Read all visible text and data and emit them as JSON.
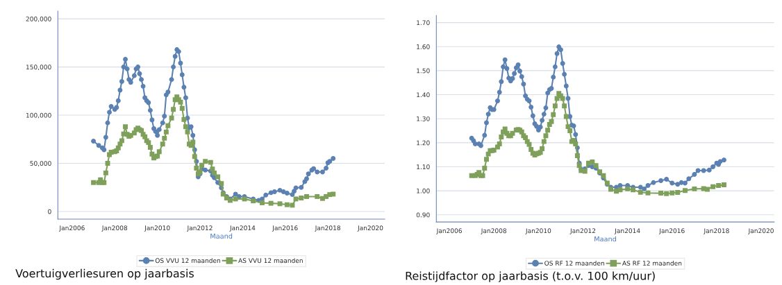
{
  "chart_data": [
    {
      "type": "line",
      "title": "Voertuigverliesuren op jaarbasis",
      "xlabel": "Maand",
      "xlim": [
        "2005-05",
        "2020-09"
      ],
      "xticks": [
        {
          "value": "2006-01",
          "label": "Jan2006"
        },
        {
          "value": "2008-01",
          "label": "Jan2008"
        },
        {
          "value": "2010-01",
          "label": "Jan2010"
        },
        {
          "value": "2012-01",
          "label": "Jan2012"
        },
        {
          "value": "2014-01",
          "label": "Jan2014"
        },
        {
          "value": "2016-01",
          "label": "Jan2016"
        },
        {
          "value": "2018-01",
          "label": "Jan2018"
        },
        {
          "value": "2020-01",
          "label": "Jan2020"
        }
      ],
      "ylim": [
        -8000,
        208000
      ],
      "yticks": [
        0,
        {
          "value": 50000,
          "label": "50,000"
        },
        {
          "value": 100000,
          "label": "100,000"
        },
        {
          "value": 150000,
          "label": "150,000"
        },
        {
          "value": 200000,
          "label": "200,000"
        }
      ],
      "grid": "y",
      "legend": "bottom",
      "series": [
        {
          "name": "OS VVU 12 maanden",
          "color": "#5b80b2",
          "marker": "circle",
          "x": [
            "2007-01",
            "2007-04",
            "2007-06",
            "2007-07",
            "2007-08",
            "2007-09",
            "2007-10",
            "2007-11",
            "2008-01",
            "2008-02",
            "2008-03",
            "2008-04",
            "2008-05",
            "2008-06",
            "2008-07",
            "2008-08",
            "2008-09",
            "2008-10",
            "2008-12",
            "2009-01",
            "2009-02",
            "2009-03",
            "2009-04",
            "2009-05",
            "2009-06",
            "2009-07",
            "2009-08",
            "2009-09",
            "2009-10",
            "2009-11",
            "2009-12",
            "2010-01",
            "2010-02",
            "2010-04",
            "2010-05",
            "2010-06",
            "2010-07",
            "2010-09",
            "2010-10",
            "2010-11",
            "2010-12",
            "2011-01",
            "2011-02",
            "2011-03",
            "2011-04",
            "2011-05",
            "2011-06",
            "2011-07",
            "2011-08",
            "2011-09",
            "2011-10",
            "2011-11",
            "2011-12",
            "2012-01",
            "2012-02",
            "2012-04",
            "2012-07",
            "2012-08",
            "2012-09",
            "2012-11",
            "2013-01",
            "2013-02",
            "2013-04",
            "2013-06",
            "2013-09",
            "2013-11",
            "2014-02",
            "2014-07",
            "2014-10",
            "2014-12",
            "2015-02",
            "2015-05",
            "2015-07",
            "2015-10",
            "2015-12",
            "2016-02",
            "2016-05",
            "2016-06",
            "2016-07",
            "2016-10",
            "2016-12",
            "2017-01",
            "2017-02",
            "2017-04",
            "2017-05",
            "2017-07",
            "2017-10",
            "2017-12",
            "2018-01",
            "2018-02",
            "2018-04"
          ],
          "values": [
            73000,
            68500,
            66000,
            64000,
            77000,
            92000,
            103000,
            109000,
            106000,
            108000,
            115000,
            126000,
            135000,
            150000,
            158000,
            148000,
            137000,
            134000,
            141000,
            148000,
            150000,
            143000,
            137000,
            130000,
            118000,
            115000,
            113000,
            105000,
            95000,
            86000,
            83000,
            79000,
            85000,
            92000,
            99000,
            121000,
            124000,
            137000,
            150000,
            161000,
            168000,
            166000,
            154000,
            142000,
            129000,
            118000,
            97000,
            87000,
            88000,
            79000,
            64000,
            52000,
            36000,
            39000,
            44000,
            43000,
            42000,
            37500,
            35000,
            30000,
            24500,
            19500,
            15500,
            13000,
            18000,
            15500,
            15500,
            13000,
            11500,
            13000,
            17000,
            19500,
            20500,
            22000,
            20500,
            19000,
            17500,
            21000,
            24500,
            25000,
            31000,
            34000,
            39000,
            43000,
            44500,
            41000,
            41000,
            45000,
            50500,
            52000,
            55000
          ]
        },
        {
          "name": "AS VVU 12 maanden",
          "color": "#7fa05a",
          "marker": "square",
          "x": [
            "2007-01",
            "2007-04",
            "2007-05",
            "2007-06",
            "2007-07",
            "2007-08",
            "2007-09",
            "2007-10",
            "2007-11",
            "2008-01",
            "2008-02",
            "2008-03",
            "2008-04",
            "2008-05",
            "2008-06",
            "2008-07",
            "2008-08",
            "2008-09",
            "2008-10",
            "2008-12",
            "2009-01",
            "2009-02",
            "2009-03",
            "2009-04",
            "2009-05",
            "2009-06",
            "2009-07",
            "2009-08",
            "2009-09",
            "2009-10",
            "2009-11",
            "2009-12",
            "2010-01",
            "2010-02",
            "2010-04",
            "2010-05",
            "2010-06",
            "2010-07",
            "2010-09",
            "2010-10",
            "2010-11",
            "2010-12",
            "2011-01",
            "2011-02",
            "2011-03",
            "2011-04",
            "2011-05",
            "2011-06",
            "2011-07",
            "2011-08",
            "2011-09",
            "2011-10",
            "2011-11",
            "2011-12",
            "2012-01",
            "2012-02",
            "2012-04",
            "2012-07",
            "2012-08",
            "2012-09",
            "2012-11",
            "2013-01",
            "2013-02",
            "2013-04",
            "2013-06",
            "2013-09",
            "2014-02",
            "2014-07",
            "2014-12",
            "2015-05",
            "2015-10",
            "2016-02",
            "2016-05",
            "2016-07",
            "2016-10",
            "2017-01",
            "2017-07",
            "2017-10",
            "2017-12",
            "2018-02",
            "2018-04"
          ],
          "values": [
            30000,
            30000,
            33000,
            30000,
            30000,
            40000,
            50000,
            59000,
            61500,
            62000,
            63000,
            66000,
            70000,
            73500,
            80500,
            88000,
            80000,
            78000,
            79000,
            81500,
            85000,
            86500,
            85000,
            84000,
            80000,
            77500,
            73500,
            71500,
            66500,
            59500,
            55500,
            57000,
            57500,
            62000,
            70000,
            76000,
            82500,
            89000,
            97000,
            106000,
            116000,
            119000,
            116000,
            113500,
            107000,
            95500,
            88000,
            82500,
            70000,
            68500,
            72000,
            57000,
            45000,
            39000,
            41000,
            48000,
            52000,
            51000,
            44000,
            40000,
            36000,
            29000,
            18000,
            14000,
            11500,
            13000,
            13000,
            11000,
            9000,
            8500,
            8000,
            7000,
            6500,
            13000,
            14000,
            15500,
            15500,
            13500,
            15500,
            17500,
            18000
          ]
        }
      ]
    },
    {
      "type": "line",
      "title": "Reistijdfactor op jaarbasis (t.o.v. 100 km/uur)",
      "xlabel": "Maand",
      "xlim": [
        "2005-06",
        "2020-08"
      ],
      "xticks": [
        {
          "value": "2006-01",
          "label": "Jan2006"
        },
        {
          "value": "2008-01",
          "label": "Jan2008"
        },
        {
          "value": "2010-01",
          "label": "Jan2010"
        },
        {
          "value": "2012-01",
          "label": "Jan2012"
        },
        {
          "value": "2014-01",
          "label": "Jan2014"
        },
        {
          "value": "2016-01",
          "label": "Jan2016"
        },
        {
          "value": "2018-01",
          "label": "Jan2018"
        },
        {
          "value": "2020-01",
          "label": "Jan2020"
        }
      ],
      "ylim": [
        0.87,
        1.73
      ],
      "yticks": [
        {
          "value": 0.9,
          "label": "0.90"
        },
        {
          "value": 1.0,
          "label": "1.00"
        },
        {
          "value": 1.1,
          "label": "1.10"
        },
        {
          "value": 1.2,
          "label": "1.20"
        },
        {
          "value": 1.3,
          "label": "1.30"
        },
        {
          "value": 1.4,
          "label": "1.40"
        },
        {
          "value": 1.5,
          "label": "1.50"
        },
        {
          "value": 1.6,
          "label": "1.60"
        },
        {
          "value": 1.7,
          "label": "1.70"
        }
      ],
      "grid": "y",
      "legend": "bottom",
      "series": [
        {
          "name": "OS RF 12 maanden",
          "color": "#5b80b2",
          "marker": "circle",
          "x": [
            "2007-01",
            "2007-02",
            "2007-03",
            "2007-05",
            "2007-06",
            "2007-08",
            "2007-09",
            "2007-10",
            "2007-11",
            "2007-12",
            "2008-01",
            "2008-03",
            "2008-04",
            "2008-05",
            "2008-06",
            "2008-07",
            "2008-08",
            "2008-09",
            "2008-10",
            "2008-11",
            "2008-12",
            "2009-01",
            "2009-02",
            "2009-03",
            "2009-04",
            "2009-05",
            "2009-06",
            "2009-07",
            "2009-08",
            "2009-09",
            "2009-10",
            "2009-11",
            "2009-12",
            "2010-01",
            "2010-02",
            "2010-03",
            "2010-04",
            "2010-05",
            "2010-06",
            "2010-07",
            "2010-08",
            "2010-09",
            "2010-10",
            "2010-11",
            "2010-12",
            "2011-01",
            "2011-02",
            "2011-03",
            "2011-04",
            "2011-05",
            "2011-06",
            "2011-07",
            "2011-08",
            "2011-09",
            "2011-10",
            "2011-11",
            "2011-12",
            "2012-02",
            "2012-04",
            "2012-06",
            "2012-08",
            "2012-10",
            "2012-12",
            "2013-02",
            "2013-04",
            "2013-07",
            "2013-09",
            "2014-01",
            "2014-04",
            "2014-08",
            "2014-10",
            "2014-12",
            "2015-03",
            "2015-07",
            "2015-10",
            "2016-01",
            "2016-04",
            "2016-06",
            "2016-08",
            "2016-10",
            "2017-01",
            "2017-03",
            "2017-06",
            "2017-09",
            "2017-11",
            "2018-01",
            "2018-02",
            "2018-03",
            "2018-05"
          ],
          "values": [
            1.219,
            1.208,
            1.195,
            1.195,
            1.188,
            1.231,
            1.283,
            1.319,
            1.346,
            1.338,
            1.338,
            1.374,
            1.41,
            1.454,
            1.516,
            1.545,
            1.509,
            1.469,
            1.457,
            1.467,
            1.488,
            1.512,
            1.524,
            1.498,
            1.475,
            1.444,
            1.395,
            1.381,
            1.374,
            1.348,
            1.312,
            1.279,
            1.268,
            1.253,
            1.265,
            1.293,
            1.319,
            1.345,
            1.407,
            1.421,
            1.426,
            1.473,
            1.516,
            1.571,
            1.599,
            1.587,
            1.53,
            1.485,
            1.436,
            1.384,
            1.309,
            1.273,
            1.27,
            1.234,
            1.179,
            1.115,
            1.089,
            1.091,
            1.105,
            1.1,
            1.094,
            1.074,
            1.053,
            1.027,
            1.015,
            1.015,
            1.022,
            1.022,
            1.015,
            1.015,
            1.008,
            1.022,
            1.034,
            1.042,
            1.048,
            1.032,
            1.027,
            1.034,
            1.032,
            1.05,
            1.068,
            1.084,
            1.084,
            1.086,
            1.1,
            1.115,
            1.11,
            1.122,
            1.128
          ]
        },
        {
          "name": "AS RF 12 maanden",
          "color": "#7fa05a",
          "marker": "square",
          "x": [
            "2007-01",
            "2007-03",
            "2007-04",
            "2007-05",
            "2007-06",
            "2007-07",
            "2007-08",
            "2007-09",
            "2007-10",
            "2007-11",
            "2007-12",
            "2008-01",
            "2008-03",
            "2008-04",
            "2008-05",
            "2008-06",
            "2008-07",
            "2008-08",
            "2008-09",
            "2008-10",
            "2008-11",
            "2009-01",
            "2009-02",
            "2009-03",
            "2009-04",
            "2009-05",
            "2009-06",
            "2009-07",
            "2009-08",
            "2009-09",
            "2009-10",
            "2009-11",
            "2009-12",
            "2010-01",
            "2010-02",
            "2010-03",
            "2010-04",
            "2010-05",
            "2010-06",
            "2010-07",
            "2010-08",
            "2010-09",
            "2010-10",
            "2010-11",
            "2010-12",
            "2011-01",
            "2011-02",
            "2011-03",
            "2011-04",
            "2011-05",
            "2011-06",
            "2011-07",
            "2011-08",
            "2011-09",
            "2011-10",
            "2011-11",
            "2011-12",
            "2012-02",
            "2012-04",
            "2012-06",
            "2012-08",
            "2012-10",
            "2012-12",
            "2013-02",
            "2013-04",
            "2013-07",
            "2013-09",
            "2014-01",
            "2014-04",
            "2014-08",
            "2014-12",
            "2015-07",
            "2015-10",
            "2016-01",
            "2016-04",
            "2016-08",
            "2017-01",
            "2017-06",
            "2017-08",
            "2017-11",
            "2018-02",
            "2018-05"
          ],
          "values": [
            1.063,
            1.063,
            1.068,
            1.076,
            1.063,
            1.063,
            1.094,
            1.131,
            1.153,
            1.167,
            1.167,
            1.169,
            1.182,
            1.195,
            1.224,
            1.245,
            1.257,
            1.239,
            1.229,
            1.229,
            1.239,
            1.253,
            1.255,
            1.252,
            1.245,
            1.229,
            1.221,
            1.205,
            1.193,
            1.172,
            1.156,
            1.149,
            1.154,
            1.156,
            1.16,
            1.175,
            1.205,
            1.229,
            1.252,
            1.276,
            1.288,
            1.317,
            1.353,
            1.384,
            1.405,
            1.395,
            1.384,
            1.353,
            1.309,
            1.267,
            1.25,
            1.205,
            1.21,
            1.195,
            1.146,
            1.105,
            1.084,
            1.081,
            1.115,
            1.12,
            1.105,
            1.079,
            1.063,
            1.032,
            1.006,
            0.998,
            1.004,
            1.008,
            1.004,
            0.994,
            0.991,
            0.99,
            0.988,
            0.991,
            0.993,
            1.001,
            1.008,
            1.009,
            1.006,
            1.017,
            1.022,
            1.025
          ]
        }
      ]
    }
  ]
}
